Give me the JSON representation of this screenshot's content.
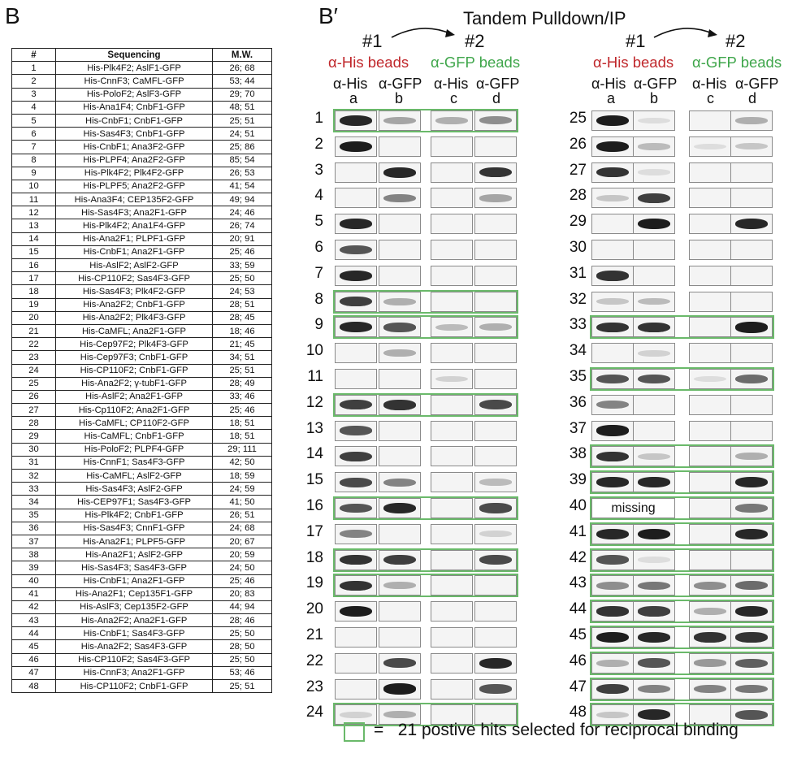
{
  "panels": {
    "left_label": "B",
    "right_label": "B′"
  },
  "table": {
    "headers": [
      "#",
      "Sequencing",
      "M.W."
    ],
    "rows": [
      [
        "1",
        "His-Plk4F2; AslF1-GFP",
        "26; 68"
      ],
      [
        "2",
        "His-CnnF3; CaMFL-GFP",
        "53; 44"
      ],
      [
        "3",
        "His-PoloF2; AslF3-GFP",
        "29; 70"
      ],
      [
        "4",
        "His-Ana1F4; CnbF1-GFP",
        "48; 51"
      ],
      [
        "5",
        "His-CnbF1; CnbF1-GFP",
        "25; 51"
      ],
      [
        "6",
        "His-Sas4F3; CnbF1-GFP",
        "24; 51"
      ],
      [
        "7",
        "His-CnbF1; Ana3F2-GFP",
        "25; 86"
      ],
      [
        "8",
        "His-PLPF4; Ana2F2-GFP",
        "85; 54"
      ],
      [
        "9",
        "His-Plk4F2; Plk4F2-GFP",
        "26; 53"
      ],
      [
        "10",
        "His-PLPF5; Ana2F2-GFP",
        "41; 54"
      ],
      [
        "11",
        "His-Ana3F4; CEP135F2-GFP",
        "49; 94"
      ],
      [
        "12",
        "His-Sas4F3; Ana2F1-GFP",
        "24; 46"
      ],
      [
        "13",
        "His-Plk4F2; Ana1F4-GFP",
        "26; 74"
      ],
      [
        "14",
        "His-Ana2F1; PLPF1-GFP",
        "20; 91"
      ],
      [
        "15",
        "His-CnbF1; Ana2F1-GFP",
        "25; 46"
      ],
      [
        "16",
        "His-AslF2; AslF2-GFP",
        "33; 59"
      ],
      [
        "17",
        "His-CP110F2; Sas4F3-GFP",
        "25; 50"
      ],
      [
        "18",
        "His-Sas4F3; Plk4F2-GFP",
        "24; 53"
      ],
      [
        "19",
        "His-Ana2F2; CnbF1-GFP",
        "28; 51"
      ],
      [
        "20",
        "His-Ana2F2; Plk4F3-GFP",
        "28; 45"
      ],
      [
        "21",
        "His-CaMFL; Ana2F1-GFP",
        "18; 46"
      ],
      [
        "22",
        "His-Cep97F2; Plk4F3-GFP",
        "21; 45"
      ],
      [
        "23",
        "His-Cep97F3; CnbF1-GFP",
        "34; 51"
      ],
      [
        "24",
        "His-CP110F2; CnbF1-GFP",
        "25; 51"
      ],
      [
        "25",
        "His-Ana2F2; γ-tubF1-GFP",
        "28; 49"
      ],
      [
        "26",
        "His-AslF2; Ana2F1-GFP",
        "33; 46"
      ],
      [
        "27",
        "His-Cp110F2; Ana2F1-GFP",
        "25; 46"
      ],
      [
        "28",
        "His-CaMFL; CP110F2-GFP",
        "18; 51"
      ],
      [
        "29",
        "His-CaMFL; CnbF1-GFP",
        "18; 51"
      ],
      [
        "30",
        "His-PoloF2; PLPF4-GFP",
        "29; 111"
      ],
      [
        "31",
        "His-CnnF1; Sas4F3-GFP",
        "42; 50"
      ],
      [
        "32",
        "His-CaMFL; AslF2-GFP",
        "18; 59"
      ],
      [
        "33",
        "His-Sas4F3; AslF2-GFP",
        "24; 59"
      ],
      [
        "34",
        "His-CEP97F1; Sas4F3-GFP",
        "41; 50"
      ],
      [
        "35",
        "His-Plk4F2; CnbF1-GFP",
        "26; 51"
      ],
      [
        "36",
        "His-Sas4F3; CnnF1-GFP",
        "24; 68"
      ],
      [
        "37",
        "His-Ana2F1; PLPF5-GFP",
        "20; 67"
      ],
      [
        "38",
        "His-Ana2F1; AslF2-GFP",
        "20; 59"
      ],
      [
        "39",
        "His-Sas4F3; Sas4F3-GFP",
        "24; 50"
      ],
      [
        "40",
        "His-CnbF1; Ana2F1-GFP",
        "25; 46"
      ],
      [
        "41",
        "His-Ana2F1; Cep135F1-GFP",
        "20; 83"
      ],
      [
        "42",
        "His-AslF3; Cep135F2-GFP",
        "44; 94"
      ],
      [
        "43",
        "His-Ana2F2; Ana2F1-GFP",
        "28; 46"
      ],
      [
        "44",
        "His-CnbF1; Sas4F3-GFP",
        "25; 50"
      ],
      [
        "45",
        "His-Ana2F2; Sas4F3-GFP",
        "28; 50"
      ],
      [
        "46",
        "His-CP110F2; Sas4F3-GFP",
        "25; 50"
      ],
      [
        "47",
        "His-CnnF3; Ana2F1-GFP",
        "53; 46"
      ],
      [
        "48",
        "His-CP110F2; CnbF1-GFP",
        "25; 51"
      ]
    ]
  },
  "blot": {
    "title": "Tandem Pulldown/IP",
    "step1": "#1",
    "step2": "#2",
    "his_beads": "α-His beads",
    "gfp_beads": "α-GFP beads",
    "ab_his": "α-His",
    "ab_gfp": "α-GFP",
    "lanes": [
      "a",
      "b",
      "c",
      "d"
    ],
    "missing_label": "missing",
    "highlight_color": "#6ab96a",
    "band_intensity": {
      "left": [
        [
          0.9,
          0.35,
          0.3,
          0.45
        ],
        [
          0.95,
          0,
          0,
          0
        ],
        [
          0,
          0.9,
          0,
          0.85
        ],
        [
          0,
          0.5,
          0,
          0.35
        ],
        [
          0.9,
          0,
          0,
          0
        ],
        [
          0.7,
          0,
          0,
          0
        ],
        [
          0.9,
          0,
          0,
          0
        ],
        [
          0.8,
          0.3,
          0,
          0
        ],
        [
          0.9,
          0.7,
          0.25,
          0.3
        ],
        [
          0,
          0.3,
          0,
          0
        ],
        [
          0,
          0,
          0.15,
          0
        ],
        [
          0.8,
          0.85,
          0,
          0.75
        ],
        [
          0.7,
          0,
          0,
          0
        ],
        [
          0.8,
          0,
          0,
          0
        ],
        [
          0.75,
          0.5,
          0,
          0.25
        ],
        [
          0.7,
          0.9,
          0,
          0.75
        ],
        [
          0.5,
          0,
          0,
          0.15
        ],
        [
          0.85,
          0.8,
          0,
          0.75
        ],
        [
          0.85,
          0.3,
          0,
          0
        ],
        [
          0.95,
          0,
          0,
          0
        ],
        [
          0,
          0,
          0,
          0
        ],
        [
          0,
          0.75,
          0,
          0.9
        ],
        [
          0,
          0.95,
          0,
          0.7
        ],
        [
          0.15,
          0.3,
          0,
          0
        ]
      ],
      "right": [
        [
          0.95,
          0.1,
          0,
          0.3
        ],
        [
          0.95,
          0.25,
          0.1,
          0.2
        ],
        [
          0.85,
          0.1,
          0,
          0
        ],
        [
          0.2,
          0.8,
          0,
          0
        ],
        [
          0,
          0.95,
          0,
          0.9
        ],
        [
          0,
          0,
          0,
          0
        ],
        [
          0.85,
          0,
          0,
          0
        ],
        [
          0.2,
          0.25,
          0,
          0
        ],
        [
          0.85,
          0.85,
          0,
          0.95
        ],
        [
          0,
          0.15,
          0,
          0
        ],
        [
          0.7,
          0.7,
          0.1,
          0.6
        ],
        [
          0.5,
          0,
          0,
          0
        ],
        [
          0.95,
          0,
          0,
          0
        ],
        [
          0.85,
          0.2,
          0,
          0.3
        ],
        [
          0.9,
          0.9,
          0,
          0.9
        ],
        [
          0,
          0,
          0,
          0.55
        ],
        [
          0.9,
          0.95,
          0,
          0.9
        ],
        [
          0.7,
          0.1,
          0,
          0
        ],
        [
          0.45,
          0.55,
          0.45,
          0.6
        ],
        [
          0.85,
          0.8,
          0.3,
          0.9
        ],
        [
          0.95,
          0.9,
          0.85,
          0.85
        ],
        [
          0.3,
          0.7,
          0.4,
          0.65
        ],
        [
          0.8,
          0.5,
          0.5,
          0.55
        ],
        [
          0.2,
          0.9,
          0,
          0.7
        ]
      ]
    },
    "highlighted_left": [
      1,
      8,
      9,
      12,
      16,
      18,
      19,
      24
    ],
    "highlighted_right": [
      33,
      35,
      38,
      39,
      40,
      41,
      42,
      43,
      44,
      45,
      46,
      47,
      48
    ]
  },
  "legend": {
    "equals": "=",
    "text": "21 postive hits selected for reciprocal binding"
  }
}
